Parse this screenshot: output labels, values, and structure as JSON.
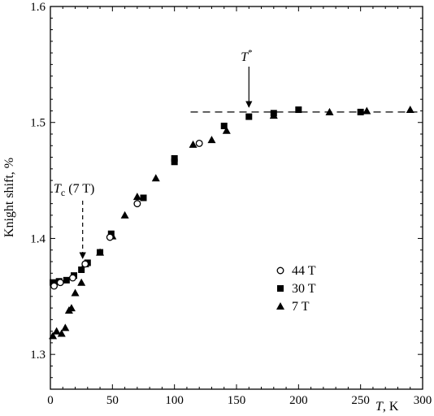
{
  "chart_data": {
    "type": "scatter",
    "xlabel_var": "T",
    "xlabel_unit": ", K",
    "ylabel": "Knight shift, %",
    "xlim": [
      0,
      300
    ],
    "ylim": [
      1.27,
      1.6
    ],
    "x_ticks": [
      0,
      50,
      100,
      150,
      200,
      250,
      300
    ],
    "y_ticks": [
      1.3,
      1.4,
      1.5,
      1.6
    ],
    "x_tick_labels": [
      "0",
      "50",
      "100",
      "150",
      "200",
      "250",
      "300"
    ],
    "y_tick_labels": [
      "1.3",
      "1.4",
      "1.5",
      "1.6"
    ],
    "grid": false,
    "legend_placement": "lower-right",
    "series": [
      {
        "name": "44 T",
        "marker": "open-circle",
        "points": [
          [
            3,
            1.359
          ],
          [
            8,
            1.362
          ],
          [
            18,
            1.366
          ],
          [
            28,
            1.378
          ],
          [
            48,
            1.401
          ],
          [
            70,
            1.43
          ],
          [
            120,
            1.482
          ]
        ]
      },
      {
        "name": "30 T",
        "marker": "filled-square",
        "points": [
          [
            2,
            1.362
          ],
          [
            7,
            1.363
          ],
          [
            13,
            1.364
          ],
          [
            19,
            1.368
          ],
          [
            25,
            1.373
          ],
          [
            30,
            1.379
          ],
          [
            40,
            1.388
          ],
          [
            49,
            1.404
          ],
          [
            75,
            1.435
          ],
          [
            100,
            1.466
          ],
          [
            100,
            1.469
          ],
          [
            140,
            1.497
          ],
          [
            160,
            1.505
          ],
          [
            180,
            1.508
          ],
          [
            200,
            1.511
          ],
          [
            250,
            1.509
          ]
        ]
      },
      {
        "name": "7 T",
        "marker": "filled-triangle",
        "points": [
          [
            2,
            1.316
          ],
          [
            5,
            1.32
          ],
          [
            9,
            1.318
          ],
          [
            12,
            1.323
          ],
          [
            15,
            1.338
          ],
          [
            17,
            1.34
          ],
          [
            20,
            1.353
          ],
          [
            25,
            1.362
          ],
          [
            28,
            1.378
          ],
          [
            40,
            1.388
          ],
          [
            50,
            1.402
          ],
          [
            60,
            1.42
          ],
          [
            70,
            1.436
          ],
          [
            85,
            1.452
          ],
          [
            115,
            1.481
          ],
          [
            130,
            1.485
          ],
          [
            142,
            1.493
          ],
          [
            180,
            1.506
          ],
          [
            225,
            1.509
          ],
          [
            255,
            1.51
          ],
          [
            290,
            1.511
          ]
        ]
      }
    ],
    "reference_lines": [
      {
        "type": "horizontal-dashed",
        "y": 1.509,
        "x_from": 113,
        "x_to": 300
      }
    ],
    "annotations": [
      {
        "label_main": "T",
        "label_super": "*",
        "arrow": "solid",
        "x_target": 160,
        "y_target": 1.509
      },
      {
        "label_main": "T",
        "label_sub": "c",
        "label_rest": " (7 T)",
        "arrow": "dashed",
        "x_target": 26,
        "y_target": 1.38
      }
    ]
  }
}
